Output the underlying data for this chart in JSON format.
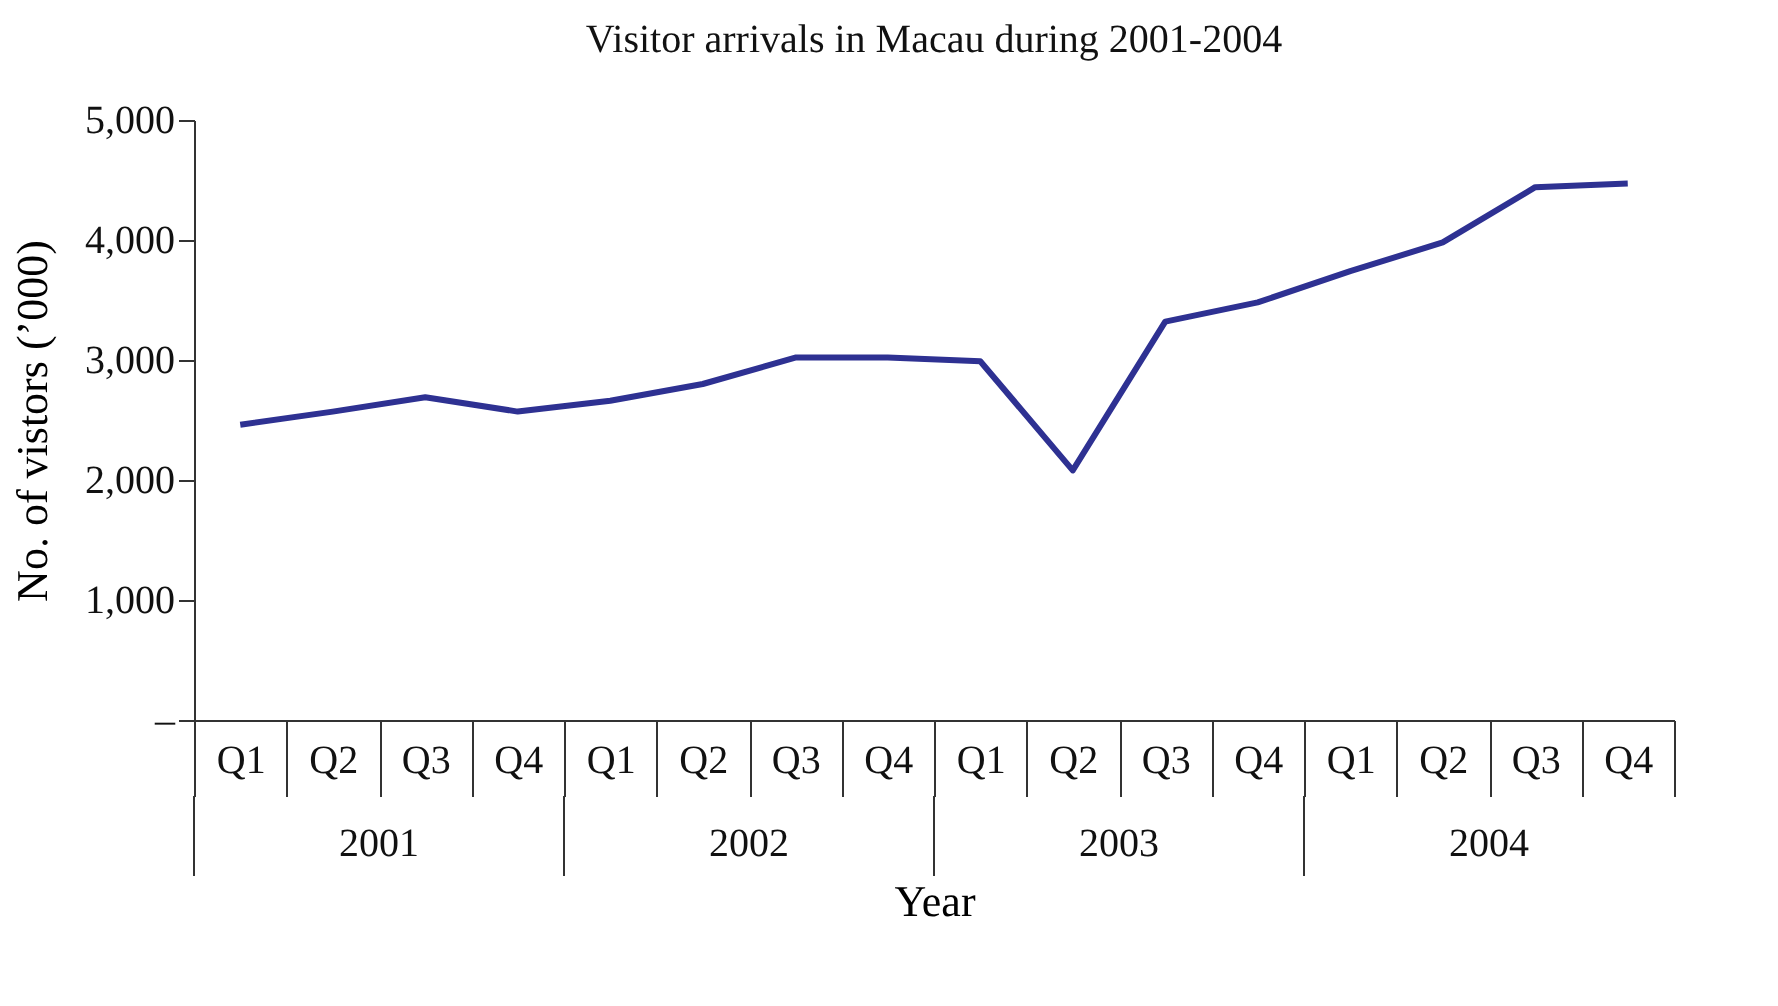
{
  "chart_data": {
    "type": "line",
    "title": "Visitor arrivals in Macau during 2001-2004",
    "xlabel": "Year",
    "ylabel": "No. of vistors (’000)",
    "categories": [
      "Q1",
      "Q2",
      "Q3",
      "Q4",
      "Q1",
      "Q2",
      "Q3",
      "Q4",
      "Q1",
      "Q2",
      "Q3",
      "Q4",
      "Q1",
      "Q2",
      "Q3",
      "Q4"
    ],
    "series": [
      {
        "color": "#2e3192",
        "values": [
          2460,
          2570,
          2690,
          2570,
          2660,
          2800,
          3020,
          3020,
          2990,
          2080,
          3320,
          3480,
          3740,
          3980,
          4440,
          4470
        ]
      }
    ],
    "annotations": [
      "2001",
      "2002",
      "2003",
      "2004"
    ],
    "ylim": [
      0,
      5000
    ],
    "yticks": [
      {
        "value": 0,
        "label": "–"
      },
      {
        "value": 1000,
        "label": "1,000"
      },
      {
        "value": 2000,
        "label": "2,000"
      },
      {
        "value": 3000,
        "label": "3,000"
      },
      {
        "value": 4000,
        "label": "4,000"
      },
      {
        "value": 5000,
        "label": "5,000"
      }
    ],
    "grid": false,
    "marker": "none",
    "line_style": "solid"
  }
}
